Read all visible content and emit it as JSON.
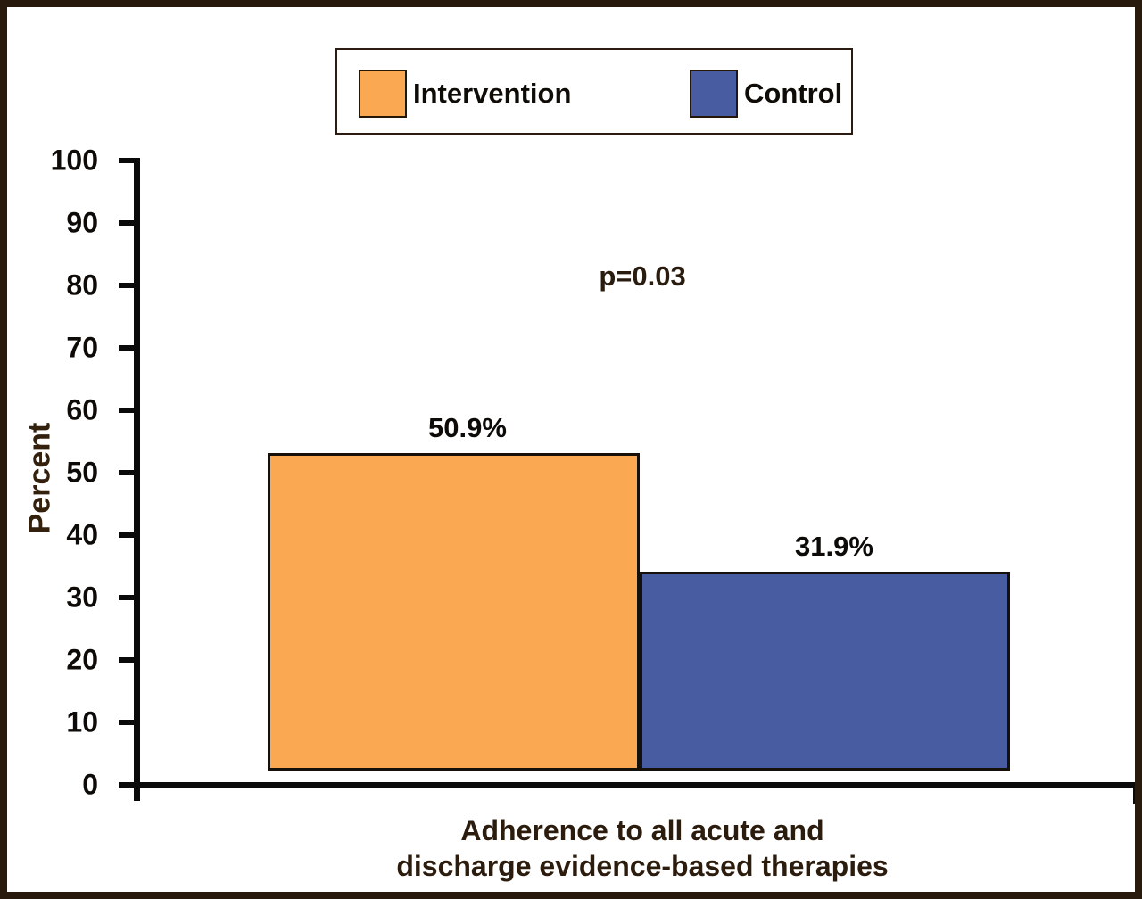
{
  "frame": {
    "border_color": "#281a0c",
    "background_color": "#ffffff"
  },
  "legend": {
    "items": [
      {
        "label": "Intervention",
        "color": "#faa851"
      },
      {
        "label": "Control",
        "color": "#485ca1"
      }
    ]
  },
  "annotation": {
    "p_value": "p=0.03"
  },
  "chart_data": {
    "type": "bar",
    "title": "",
    "categories": [
      "Adherence to all acute and discharge evidence-based therapies"
    ],
    "series": [
      {
        "name": "Intervention",
        "values": [
          50.9
        ],
        "color": "#faa851",
        "data_label": "50.9%"
      },
      {
        "name": "Control",
        "values": [
          31.9
        ],
        "color": "#485ca1",
        "data_label": "31.9%"
      }
    ],
    "ylabel": "Percent",
    "xlabel_line1": "Adherence to all acute and",
    "xlabel_line2": "discharge evidence-based therapies",
    "ylim": [
      0,
      100
    ],
    "yticks": [
      0,
      10,
      20,
      30,
      40,
      50,
      60,
      70,
      80,
      90,
      100
    ],
    "grid": false,
    "legend_position": "top",
    "annotation": "p=0.03"
  }
}
